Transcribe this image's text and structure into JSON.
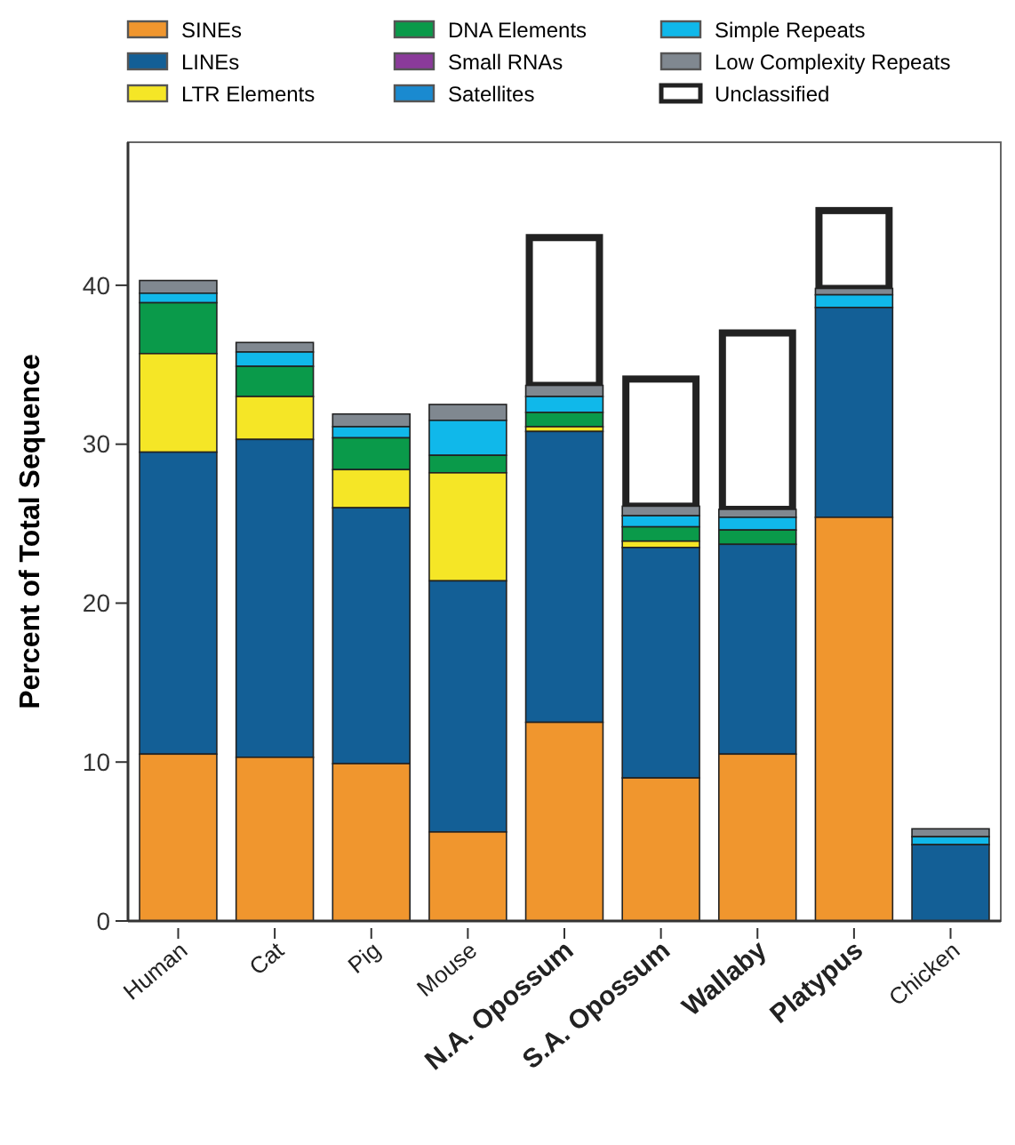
{
  "chart_data": {
    "type": "bar",
    "stacked": true,
    "ylabel": "Percent of Total Sequence",
    "categories": [
      "Human",
      "Cat",
      "Pig",
      "Mouse",
      "N.A. Opossum",
      "S.A. Opossum",
      "Wallaby",
      "Platypus",
      "Chicken"
    ],
    "ylim": [
      0,
      49
    ],
    "yticks": [
      0,
      10,
      20,
      30,
      40
    ],
    "grid": false,
    "legend": "top",
    "series": [
      {
        "name": "SINEs",
        "color": "#f0962e",
        "values": [
          10.5,
          10.3,
          9.9,
          5.6,
          12.5,
          9.0,
          10.5,
          25.4,
          0
        ]
      },
      {
        "name": "LINEs",
        "color": "#135f96",
        "values": [
          19.0,
          20.0,
          16.1,
          15.8,
          18.3,
          14.5,
          13.2,
          13.2,
          4.8
        ]
      },
      {
        "name": "LTR Elements",
        "color": "#f5e626",
        "values": [
          6.2,
          2.7,
          2.4,
          6.8,
          0.3,
          0.4,
          0,
          0,
          0
        ]
      },
      {
        "name": "DNA Elements",
        "color": "#0a9a4a",
        "values": [
          3.2,
          1.9,
          2.0,
          1.1,
          0.9,
          0.9,
          0.9,
          0,
          0
        ]
      },
      {
        "name": "Small RNAs",
        "color": "#8a3a9a",
        "values": [
          0,
          0,
          0,
          0,
          0,
          0,
          0,
          0,
          0
        ]
      },
      {
        "name": "Satellites",
        "color": "#1a8ad0",
        "values": [
          0,
          0,
          0,
          0,
          0,
          0,
          0,
          0,
          0
        ]
      },
      {
        "name": "Simple Repeats",
        "color": "#10b8ea",
        "values": [
          0.6,
          0.9,
          0.7,
          2.2,
          1.0,
          0.7,
          0.8,
          0.8,
          0.5
        ]
      },
      {
        "name": "Low Complexity Repeats",
        "color": "#808890",
        "values": [
          0.8,
          0.6,
          0.8,
          1.0,
          0.7,
          0.6,
          0.5,
          0.4,
          0.5
        ]
      },
      {
        "name": "Unclassified",
        "color": "#ffffff",
        "values": [
          0,
          0,
          0,
          0,
          9.3,
          8.0,
          11.1,
          4.9,
          0
        ]
      }
    ]
  }
}
